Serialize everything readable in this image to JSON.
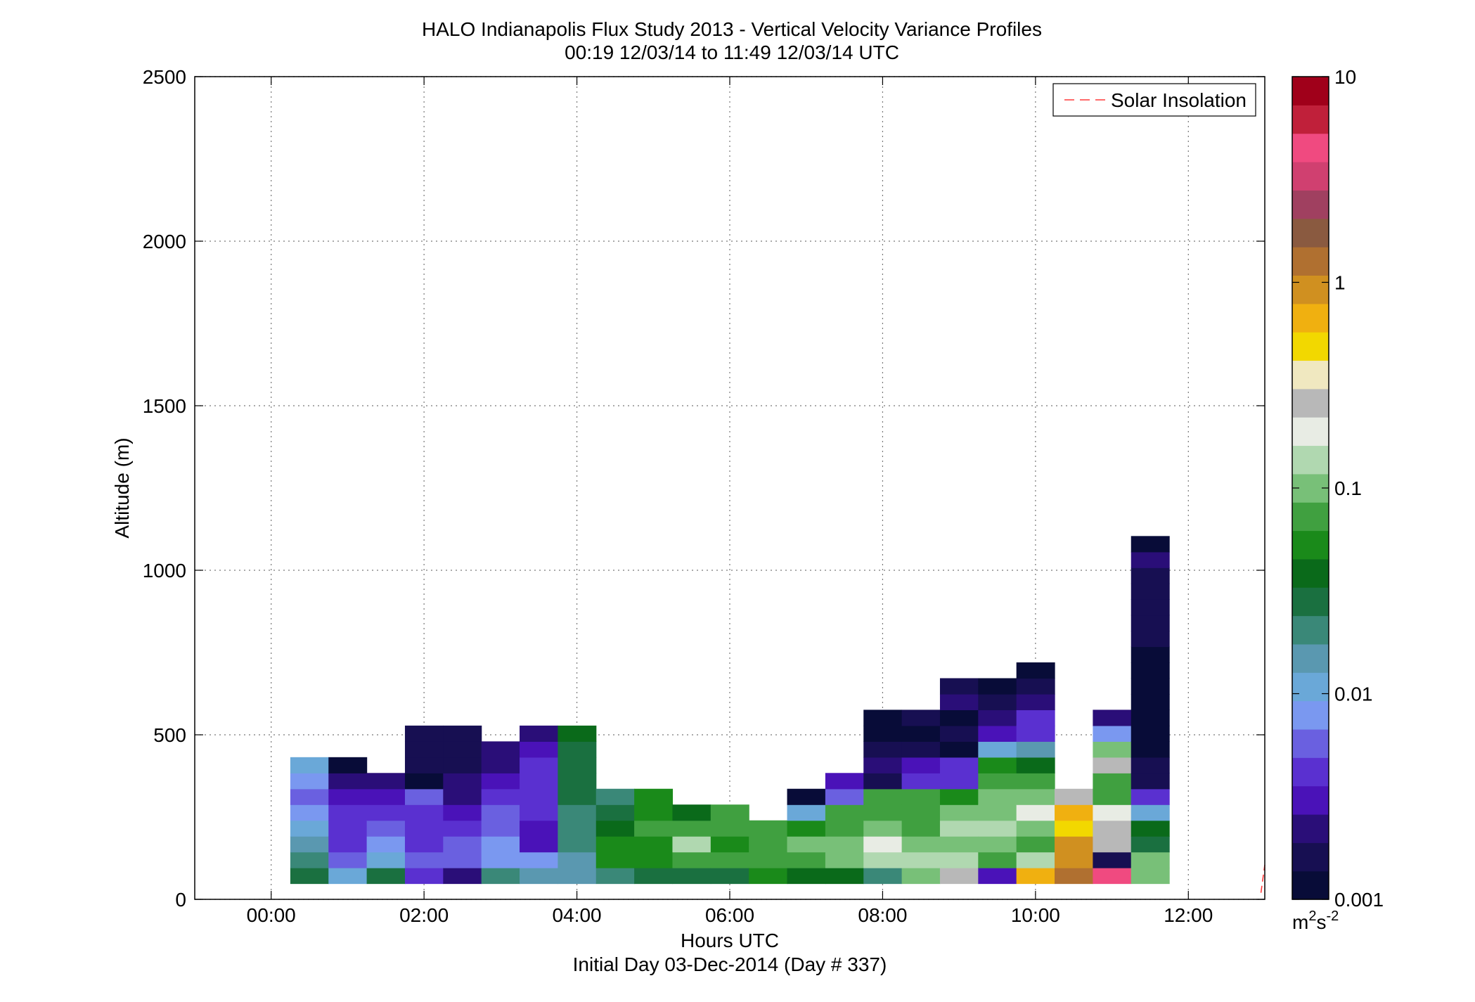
{
  "chart_data": {
    "type": "heatmap",
    "title": "HALO Indianapolis Flux Study 2013 - Vertical Velocity Variance Profiles",
    "subtitle": "00:19 12/03/14 to 11:49 12/03/14  UTC",
    "xlabel": "Hours UTC",
    "xlabel2": "Initial Day 03-Dec-2014 (Day # 337)",
    "ylabel": "Altitude (m)",
    "xlim": [
      -1,
      13
    ],
    "ylim": [
      0,
      2500
    ],
    "xticks": [
      0,
      2,
      4,
      6,
      8,
      10,
      12
    ],
    "xtick_labels": [
      "00:00",
      "02:00",
      "04:00",
      "06:00",
      "08:00",
      "10:00",
      "12:00"
    ],
    "yticks": [
      0,
      500,
      1000,
      1500,
      2000,
      2500
    ],
    "ytick_labels": [
      "0",
      "500",
      "1000",
      "1500",
      "2000",
      "2500"
    ],
    "grid": true,
    "legend": {
      "position": "top-right",
      "entries": [
        {
          "label": "Solar Insolation",
          "color": "#ff6b6b",
          "style": "dashed"
        }
      ]
    },
    "colorbar": {
      "scale": "log",
      "range": [
        0.001,
        10
      ],
      "ticks": [
        0.001,
        0.01,
        0.1,
        1,
        10
      ],
      "tick_labels": [
        "0.001",
        "0.01",
        "0.1",
        "1",
        "10"
      ],
      "units_base": "m",
      "units_sup1": "2",
      "units_mid": "s",
      "units_sup2": "-2",
      "colors": [
        "#080c38",
        "#170f52",
        "#2a0e78",
        "#4a12b8",
        "#5a30d0",
        "#6a60e0",
        "#7a98f0",
        "#6aa8d8",
        "#5a98b0",
        "#3a8878",
        "#1a7040",
        "#0a6a1a",
        "#1a8a1a",
        "#40a040",
        "#78c078",
        "#b0d8b0",
        "#e8ece4",
        "#b8b8b8",
        "#f0e8c0",
        "#f2d800",
        "#f0b010",
        "#d09020",
        "#b07030",
        "#8a5a40",
        "#a04060",
        "#d04070",
        "#f04a80",
        "#c0203a",
        "#a0001a"
      ]
    },
    "bin_dt": 0.5,
    "bin_dz": 48,
    "z0": 48,
    "bins": [
      {
        "t": 0.5,
        "c": [
          10,
          9,
          8,
          7,
          6,
          5,
          6,
          7
        ]
      },
      {
        "t": 1.0,
        "c": [
          6.8,
          4.7,
          4.0,
          3.8,
          3.5,
          2.5,
          2.0,
          0.2
        ]
      },
      {
        "t": 1.5,
        "c": [
          10,
          6.5,
          5.5,
          4.5,
          3.5,
          2.8,
          1.8
        ]
      },
      {
        "t": 2.0,
        "c": [
          3.5,
          4.6,
          4.3,
          4.0,
          4.2,
          4.5,
          0.3,
          0.9,
          0.7,
          0.5
        ]
      },
      {
        "t": 2.5,
        "c": [
          2.3,
          4.5,
          4.7,
          3.7,
          3.0,
          2.3,
          1.6,
          1.2,
          0.5,
          0.8
        ]
      },
      {
        "t": 3.0,
        "c": [
          9,
          5.5,
          5.8,
          5.0,
          4.7,
          4.0,
          3.0,
          2.2,
          1.6
        ]
      },
      {
        "t": 3.5,
        "c": [
          8.3,
          6.0,
          3.3,
          2.7,
          3.6,
          3.9,
          4.2,
          4.3,
          3.3,
          1.5
        ]
      },
      {
        "t": 4.0,
        "c": [
          8.0,
          8.2,
          8.5,
          8.8,
          9.3,
          9.8,
          9.5,
          10.2,
          10.3,
          11.0
        ]
      },
      {
        "t": 4.5,
        "c": [
          8.9,
          11.5,
          11.5,
          11.3,
          9.5,
          8.8
        ]
      },
      {
        "t": 5.0,
        "c": [
          9.5,
          11.7,
          12.0,
          13.0,
          12.1,
          11.9
        ]
      },
      {
        "t": 5.5,
        "c": [
          10.3,
          12.5,
          14.5,
          13.0,
          11.2
        ]
      },
      {
        "t": 6.0,
        "c": [
          9.5,
          12.5,
          12.3,
          13.0,
          12.5
        ]
      },
      {
        "t": 6.5,
        "c": [
          11.5,
          13.0,
          12.9,
          12.6
        ]
      },
      {
        "t": 7.0,
        "c": [
          11.3,
          13.1,
          13.5,
          12.3,
          6.6,
          0.2
        ]
      },
      {
        "t": 7.5,
        "c": [
          10.7,
          13.6,
          13.8,
          13.4,
          12.5,
          4.5,
          2.5
        ]
      },
      {
        "t": 8.0,
        "c": [
          9.0,
          15.0,
          16.0,
          14.0,
          12.7,
          12.5,
          1.2,
          1.7,
          0.6,
          0.4,
          0.2
        ]
      },
      {
        "t": 8.5,
        "c": [
          13.5,
          14.6,
          14.4,
          12.5,
          13.0,
          12.5,
          3.6,
          2.7,
          0.6,
          0.2,
          0.8
        ]
      },
      {
        "t": 9.0,
        "c": [
          17.0,
          15.2,
          14.4,
          14.5,
          13.8,
          12.0,
          4.1,
          4.3,
          0.2,
          0.6,
          0.4,
          1.6,
          0.9
        ]
      },
      {
        "t": 9.5,
        "c": [
          3.3,
          13.2,
          14.2,
          14.8,
          14.4,
          14.3,
          12.7,
          11.5,
          7.3,
          3.1,
          1.9,
          0.7,
          0.1
        ]
      },
      {
        "t": 10.0,
        "c": [
          20.2,
          14.6,
          13.3,
          13.8,
          16.0,
          14.2,
          12.6,
          10.6,
          8.2,
          3.6,
          3.5,
          2.4,
          0.9,
          0.3
        ]
      },
      {
        "t": 10.5,
        "c": [
          22.4,
          20.5,
          21.0,
          19.3,
          20.4,
          17.2
        ]
      },
      {
        "t": 11.0,
        "c": [
          26.3,
          1.2,
          17.0,
          17.2,
          15.8,
          13.4,
          13.3,
          16.5,
          13.8,
          6.1,
          1.5
        ]
      },
      {
        "t": 11.5,
        "c": [
          13.8,
          13.5,
          10.2,
          11.3,
          7.4,
          3.5,
          0.8,
          0.5,
          0.3,
          0.2,
          0.3,
          0.2,
          0.4,
          0.3,
          0.4,
          0.5,
          0.6,
          0.7,
          0.8,
          0.7,
          1.9,
          0.1
        ]
      }
    ],
    "solar_insolation": {
      "x": [
        12.95,
        13.0
      ],
      "y": [
        20,
        105
      ]
    }
  }
}
